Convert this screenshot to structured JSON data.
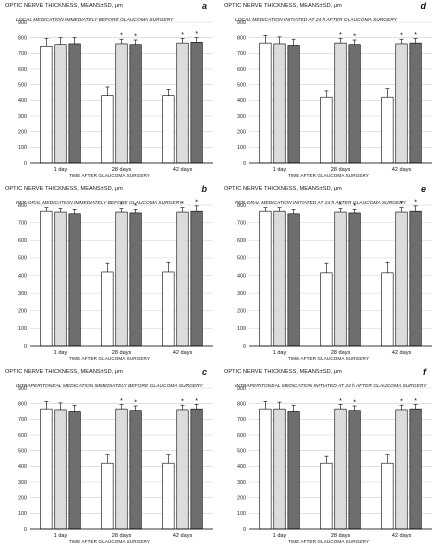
{
  "figure": {
    "ylabel": "OPTIC NERVE THICKNESS,  MEANS±SD, μm",
    "xlabel": "TIME AFTER GLAUCOMA SURGERY",
    "colors": {
      "bar1": "#ffffff",
      "bar2": "#dcdcdc",
      "bar3": "#6e6e6e",
      "grid": "#d0d0d0",
      "axis": "#000000"
    }
  },
  "chart_data": [
    {
      "type": "bar",
      "letter": "a",
      "title": "LOCAL MEDICATION IMMEDIATELY BEFORE GLAUCOMA SURGERY",
      "ylabel": "OPTIC NERVE THICKNESS,  MEANS±SD, μm",
      "xlabel": "TIME AFTER GLAUCOMA SURGERY",
      "categories": [
        "1 day",
        "28 days",
        "42 days"
      ],
      "ylim": [
        0,
        900
      ],
      "yticks": [
        0,
        100,
        200,
        300,
        400,
        500,
        600,
        700,
        800,
        900
      ],
      "grid": true,
      "series": [
        {
          "values": [
            745,
            430,
            430
          ],
          "errors": [
            50,
            55,
            40
          ],
          "sig": [
            false,
            false,
            false
          ]
        },
        {
          "values": [
            755,
            760,
            765
          ],
          "errors": [
            45,
            30,
            30
          ],
          "sig": [
            false,
            true,
            true
          ]
        },
        {
          "values": [
            760,
            755,
            770
          ],
          "errors": [
            40,
            30,
            30
          ],
          "sig": [
            false,
            true,
            true
          ]
        }
      ]
    },
    {
      "type": "bar",
      "letter": "d",
      "title": "LOCAL MEDICATION INITIATED AT 24 h AFTER GLAUCOMA SURGERY",
      "ylabel": "OPTIC NERVE THICKNESS,  MEANS±SD, μm",
      "xlabel": "TIME AFTER GLAUCOMA SURGERY",
      "categories": [
        "1 day",
        "28 days",
        "42 days"
      ],
      "ylim": [
        0,
        900
      ],
      "yticks": [
        0,
        100,
        200,
        300,
        400,
        500,
        600,
        700,
        800,
        900
      ],
      "grid": true,
      "series": [
        {
          "values": [
            765,
            420,
            420
          ],
          "errors": [
            50,
            40,
            55
          ],
          "sig": [
            false,
            false,
            false
          ]
        },
        {
          "values": [
            760,
            765,
            760
          ],
          "errors": [
            45,
            30,
            30
          ],
          "sig": [
            false,
            true,
            true
          ]
        },
        {
          "values": [
            750,
            755,
            765
          ],
          "errors": [
            40,
            30,
            30
          ],
          "sig": [
            false,
            true,
            true
          ]
        }
      ]
    },
    {
      "type": "bar",
      "letter": "b",
      "title": "PER-ORAL MEDICATION IMMEDIATELY BEFORE GLAUCOMA SURGERY",
      "ylabel": "OPTIC NERVE THICKNESS,  MEANS±SD, μm",
      "xlabel": "TIME AFTER GLAUCOMA SURGERY",
      "categories": [
        "1 day",
        "28 days",
        "42 days"
      ],
      "ylim": [
        0,
        800
      ],
      "yticks": [
        0,
        100,
        200,
        300,
        400,
        500,
        600,
        700,
        800
      ],
      "grid": true,
      "series": [
        {
          "values": [
            765,
            420,
            420
          ],
          "errors": [
            20,
            50,
            55
          ],
          "sig": [
            false,
            false,
            false
          ]
        },
        {
          "values": [
            760,
            760,
            760
          ],
          "errors": [
            20,
            20,
            25
          ],
          "sig": [
            false,
            true,
            true
          ]
        },
        {
          "values": [
            750,
            755,
            765
          ],
          "errors": [
            25,
            20,
            30
          ],
          "sig": [
            false,
            true,
            true
          ]
        }
      ]
    },
    {
      "type": "bar",
      "letter": "e",
      "title": "PER-ORAL  MEDICATION INITIATED AT 24 h AFTER GLAUCOMA SURGERY",
      "ylabel": "OPTIC NERVE THICKNESS,  MEANS±SD, μm",
      "xlabel": "TIME AFTER GLAUCOMA SURGERY",
      "categories": [
        "1 day",
        "28 days",
        "42 days"
      ],
      "ylim": [
        0,
        800
      ],
      "yticks": [
        0,
        100,
        200,
        300,
        400,
        500,
        600,
        700,
        800
      ],
      "grid": true,
      "series": [
        {
          "values": [
            765,
            415,
            415
          ],
          "errors": [
            20,
            55,
            60
          ],
          "sig": [
            false,
            false,
            false
          ]
        },
        {
          "values": [
            765,
            760,
            760
          ],
          "errors": [
            20,
            20,
            25
          ],
          "sig": [
            false,
            true,
            true
          ]
        },
        {
          "values": [
            750,
            755,
            765
          ],
          "errors": [
            25,
            20,
            30
          ],
          "sig": [
            false,
            true,
            true
          ]
        }
      ]
    },
    {
      "type": "bar",
      "letter": "c",
      "title": "INTRAPERITONEAL  MEDICATION IMMEDIATELY BEFORE GLAUCOMA SURGERY",
      "ylabel": "OPTIC NERVE THICKNESS,  MEANS±SD, μm",
      "xlabel": "TIME AFTER GLAUCOMA SURGERY",
      "categories": [
        "1 day",
        "28 days",
        "42 days"
      ],
      "ylim": [
        0,
        900
      ],
      "yticks": [
        0,
        100,
        200,
        300,
        400,
        500,
        600,
        700,
        800,
        900
      ],
      "grid": true,
      "series": [
        {
          "values": [
            765,
            420,
            420
          ],
          "errors": [
            50,
            55,
            55
          ],
          "sig": [
            false,
            false,
            false
          ]
        },
        {
          "values": [
            760,
            765,
            760
          ],
          "errors": [
            45,
            30,
            30
          ],
          "sig": [
            false,
            true,
            true
          ]
        },
        {
          "values": [
            750,
            755,
            765
          ],
          "errors": [
            40,
            30,
            30
          ],
          "sig": [
            false,
            true,
            true
          ]
        }
      ]
    },
    {
      "type": "bar",
      "letter": "f",
      "title": "INTRAPERITONEAL  MEDICATION INITIATED AT 24 h AFTER GLAUCOMA SURGERY",
      "ylabel": "OPTIC NERVE THICKNESS,  MEANS±SD, μm",
      "xlabel": "TIME AFTER GLAUCOMA SURGERY",
      "categories": [
        "1 day",
        "28 days",
        "42 days"
      ],
      "ylim": [
        0,
        900
      ],
      "yticks": [
        0,
        100,
        200,
        300,
        400,
        500,
        600,
        700,
        800,
        900
      ],
      "grid": true,
      "series": [
        {
          "values": [
            765,
            420,
            420
          ],
          "errors": [
            50,
            45,
            55
          ],
          "sig": [
            false,
            false,
            false
          ]
        },
        {
          "values": [
            765,
            765,
            760
          ],
          "errors": [
            45,
            30,
            30
          ],
          "sig": [
            false,
            true,
            true
          ]
        },
        {
          "values": [
            750,
            755,
            765
          ],
          "errors": [
            40,
            30,
            30
          ],
          "sig": [
            false,
            true,
            true
          ]
        }
      ]
    }
  ]
}
